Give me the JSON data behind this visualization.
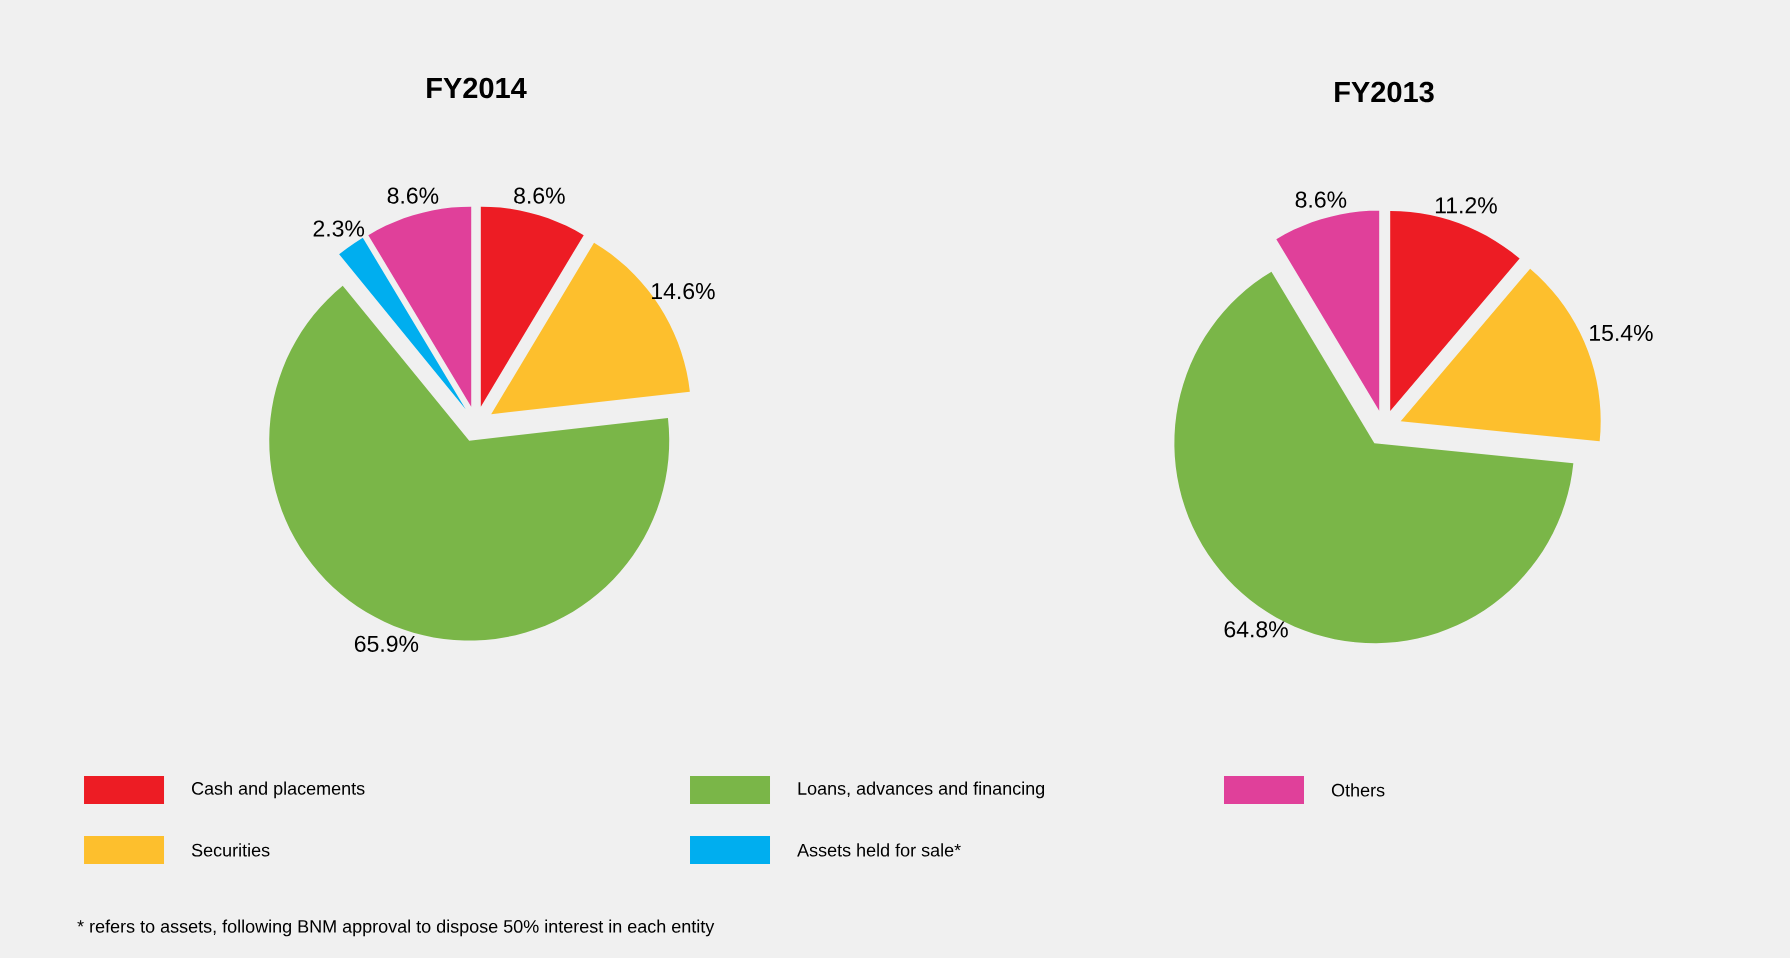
{
  "chart_data": [
    {
      "type": "pie",
      "title": "FY2014",
      "categories": [
        "Cash and placements",
        "Securities",
        "Loans, advances and financing",
        "Assets held for sale*",
        "Others"
      ],
      "values": [
        8.6,
        14.6,
        65.9,
        2.3,
        8.6
      ],
      "colors": [
        "#ed1c24",
        "#fdbf2d",
        "#7ab648",
        "#00aeef",
        "#e0409a"
      ],
      "value_labels": [
        "8.6%",
        "14.6%",
        "65.9%",
        "2.3%",
        "8.6%"
      ],
      "legend": "bottom",
      "annotations": [
        "* refers to assets, following BNM approval to dispose 50% interest in each entity"
      ]
    },
    {
      "type": "pie",
      "title": "FY2013",
      "categories": [
        null,
        null,
        null,
        null
      ],
      "values": [
        11.2,
        15.4,
        64.8,
        8.6
      ],
      "colors": [
        "#ed1c24",
        "#fdbf2d",
        "#7ab648",
        "#e0409a"
      ],
      "value_labels": [
        "11.2%",
        "15.4%",
        "64.8%",
        "8.6%"
      ]
    }
  ]
}
